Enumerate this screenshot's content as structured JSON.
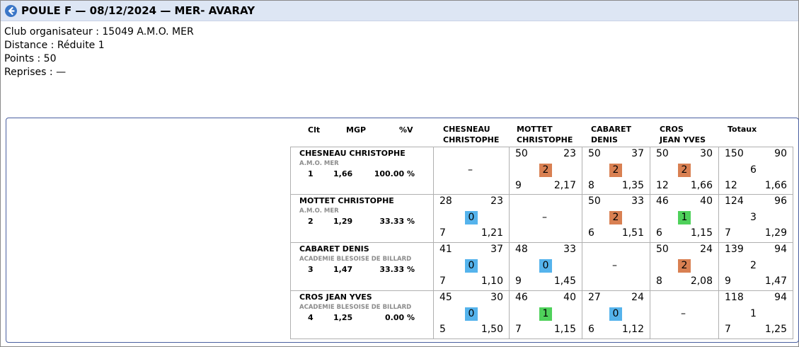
{
  "title": "POULE F — 08/12/2024 — MER- AVARAY",
  "info": [
    "Club organisateur : 15049 A.M.O. MER",
    "Distance : Réduite 1",
    "Points : 50",
    "Reprises : —"
  ],
  "headers": {
    "clt": "Clt",
    "mgp": "MGP",
    "pctv": "%V",
    "col1a": "CHESNEAU",
    "col1b": "CHRISTOPHE",
    "col2a": "MOTTET",
    "col2b": "CHRISTOPHE",
    "col3a": "CABARET",
    "col3b": "DENIS",
    "col4a": "CROS",
    "col4b": "JEAN YVES",
    "totaux": "Totaux"
  },
  "players": [
    {
      "name": "CHESNEAU CHRISTOPHE",
      "club": "A.M.O. MER",
      "clt": "1",
      "mgp": "1,66",
      "pctv": "100.00 %",
      "cells": [
        {
          "dash": "–"
        },
        {
          "points": "50",
          "opp": "23",
          "badge": "2",
          "color": "orange",
          "reprises": "9",
          "moy": "2,17"
        },
        {
          "points": "50",
          "opp": "37",
          "badge": "2",
          "color": "orange",
          "reprises": "8",
          "moy": "1,35"
        },
        {
          "points": "50",
          "opp": "30",
          "badge": "2",
          "color": "orange",
          "reprises": "12",
          "moy": "1,66"
        }
      ],
      "totals": {
        "points": "150",
        "opp": "90",
        "pts": "6",
        "reprises": "12",
        "moy": "1,66"
      }
    },
    {
      "name": "MOTTET CHRISTOPHE",
      "club": "A.M.O. MER",
      "clt": "2",
      "mgp": "1,29",
      "pctv": "33.33 %",
      "cells": [
        {
          "points": "28",
          "opp": "23",
          "badge": "0",
          "color": "blue",
          "reprises": "7",
          "moy": "1,21"
        },
        {
          "dash": "–"
        },
        {
          "points": "50",
          "opp": "33",
          "badge": "2",
          "color": "orange",
          "reprises": "6",
          "moy": "1,51"
        },
        {
          "points": "46",
          "opp": "40",
          "badge": "1",
          "color": "green",
          "reprises": "6",
          "moy": "1,15"
        }
      ],
      "totals": {
        "points": "124",
        "opp": "96",
        "pts": "3",
        "reprises": "7",
        "moy": "1,29"
      }
    },
    {
      "name": "CABARET DENIS",
      "club": "ACADEMIE BLESOISE DE BILLARD",
      "clt": "3",
      "mgp": "1,47",
      "pctv": "33.33 %",
      "cells": [
        {
          "points": "41",
          "opp": "37",
          "badge": "0",
          "color": "blue",
          "reprises": "7",
          "moy": "1,10"
        },
        {
          "points": "48",
          "opp": "33",
          "badge": "0",
          "color": "blue",
          "reprises": "9",
          "moy": "1,45"
        },
        {
          "dash": "–"
        },
        {
          "points": "50",
          "opp": "24",
          "badge": "2",
          "color": "orange",
          "reprises": "8",
          "moy": "2,08"
        }
      ],
      "totals": {
        "points": "139",
        "opp": "94",
        "pts": "2",
        "reprises": "9",
        "moy": "1,47"
      }
    },
    {
      "name": "CROS JEAN YVES",
      "club": "ACADEMIE BLESOISE DE BILLARD",
      "clt": "4",
      "mgp": "1,25",
      "pctv": "0.00 %",
      "cells": [
        {
          "points": "45",
          "opp": "30",
          "badge": "0",
          "color": "blue",
          "reprises": "5",
          "moy": "1,50"
        },
        {
          "points": "46",
          "opp": "40",
          "badge": "1",
          "color": "green",
          "reprises": "7",
          "moy": "1,15"
        },
        {
          "points": "27",
          "opp": "24",
          "badge": "0",
          "color": "blue",
          "reprises": "6",
          "moy": "1,12"
        },
        {
          "dash": "–"
        }
      ],
      "totals": {
        "points": "118",
        "opp": "94",
        "pts": "1",
        "reprises": "7",
        "moy": "1,25"
      }
    }
  ],
  "colors": {
    "orange": "#d98052",
    "blue": "#55b3ec",
    "green": "#4fd15b",
    "titlebar": "#dde6f4"
  }
}
